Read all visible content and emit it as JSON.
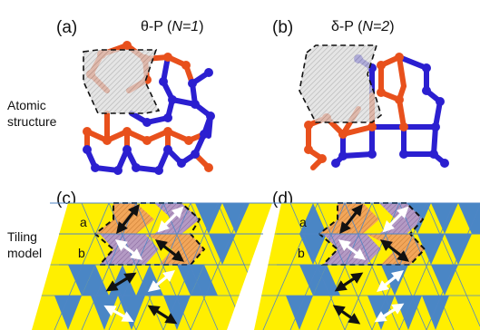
{
  "panels": {
    "a": {
      "tag": "(a)",
      "title_prefix": "θ-P (",
      "title_n": "N=1",
      "title_suffix": ")"
    },
    "b": {
      "tag": "(b)",
      "title_prefix": "δ-P (",
      "title_n": "N=2",
      "title_suffix": ")"
    },
    "c": {
      "tag": "(c)"
    },
    "d": {
      "tag": "(d)"
    }
  },
  "labels": {
    "atomic_line1": "Atomic",
    "atomic_line2": "structure",
    "tiling_line1": "Tiling",
    "tiling_line2": "model",
    "row_a": "a",
    "row_b": "b"
  },
  "colors": {
    "bond_red": "#e8501c",
    "bond_blue": "#2b1fd0",
    "tile_yellow": "#ffef00",
    "tile_blue": "#4a86c5",
    "tile_orange": "#f2a65a",
    "tile_purple": "#a78ab8",
    "guide_line": "#4f86c6"
  }
}
